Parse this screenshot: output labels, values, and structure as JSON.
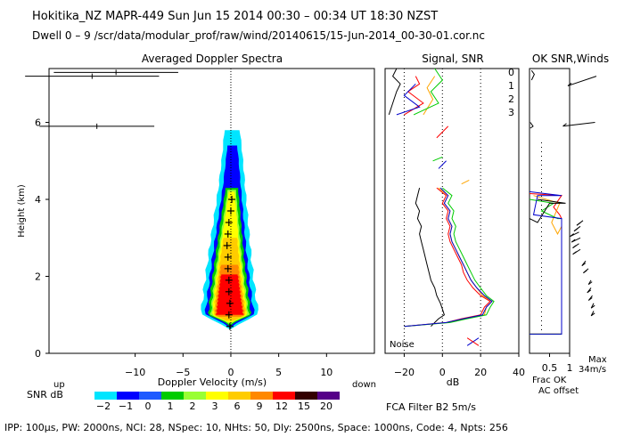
{
  "header": {
    "line1": "Hokitika_NZ   MAPR-449   Sun Jun 15 2014 00:30  –  00:34 UT 18:30 NZST",
    "line2": "Dwell   0  –   9    /scr/data/modular_prof/raw/wind/20140615/15-Jun-2014_00-30-01.cor.nc"
  },
  "footer": {
    "params": "IPP: 100μs,   PW: 2000ns,   NCI:  28,  NSpec: 10,  NHts: 50,   Dly: 2500ns,   Space: 1000ns,   Code: 4,   Npts: 256",
    "filter": "FCA Filter B2   5m/s"
  },
  "colors": {
    "c0": "#ff0000",
    "c1": "#ffa500",
    "c2": "#00cc00",
    "c3": "#0000cc",
    "snr_scale": [
      "#00e5ff",
      "#0000ff",
      "#1e5aff",
      "#00cc00",
      "#99ff33",
      "#ffff00",
      "#ffcc00",
      "#ff8800",
      "#ff0000",
      "#330000",
      "#550088"
    ]
  },
  "chart_data": [
    {
      "type": "heatmap",
      "title": "Averaged Doppler Spectra",
      "xlabel": "Doppler Velocity (m/s)",
      "ylabel": "Height (km)",
      "xlim": [
        -19,
        15
      ],
      "ylim": [
        0,
        7.4
      ],
      "x_ticks": [
        -10,
        -5,
        0,
        5,
        10
      ],
      "y_ticks": [
        0,
        2,
        4,
        6
      ],
      "side_labels": {
        "left": "up",
        "right": "down"
      },
      "colorbar": {
        "label": "SNR dB",
        "ticks": [
          "−2",
          "−1",
          "0",
          "1",
          "2",
          "3",
          "6",
          "9",
          "12",
          "15",
          "20"
        ]
      },
      "spectrum_peaks": [
        {
          "height": 0.7,
          "velocity": -0.1
        },
        {
          "height": 1.0,
          "velocity": -0.2
        },
        {
          "height": 1.3,
          "velocity": -0.1
        },
        {
          "height": 1.6,
          "velocity": -0.2
        },
        {
          "height": 1.9,
          "velocity": -0.2
        },
        {
          "height": 2.2,
          "velocity": -0.3
        },
        {
          "height": 2.5,
          "velocity": -0.3
        },
        {
          "height": 2.8,
          "velocity": -0.4
        },
        {
          "height": 3.1,
          "velocity": -0.3
        },
        {
          "height": 3.4,
          "velocity": -0.2
        },
        {
          "height": 3.7,
          "velocity": 0.0
        },
        {
          "height": 4.0,
          "velocity": 0.1
        }
      ],
      "upper_error_bars": [
        {
          "height": 7.3,
          "center": -12,
          "half_width": 6.5
        },
        {
          "height": 7.2,
          "center": -14.5,
          "half_width": 7
        },
        {
          "height": 5.9,
          "center": -14,
          "half_width": 6
        }
      ]
    },
    {
      "type": "line",
      "title": "Signal, SNR",
      "xlabel": "dB",
      "xlim": [
        -30,
        40
      ],
      "ylim": [
        0,
        7.4
      ],
      "x_ticks": [
        -20,
        0,
        20,
        40
      ],
      "annotation": "Noise",
      "legend": [
        "0",
        "1",
        "2",
        "3"
      ],
      "series": [
        {
          "name": "signal",
          "points": [
            [
              -6,
              0.7
            ],
            [
              -4,
              0.8
            ],
            [
              -2,
              0.9
            ],
            [
              1,
              1.0
            ],
            [
              0,
              1.15
            ],
            [
              -1,
              1.3
            ],
            [
              -3,
              1.5
            ],
            [
              -4,
              1.7
            ],
            [
              -6,
              1.9
            ],
            [
              -7,
              2.1
            ],
            [
              -8,
              2.3
            ],
            [
              -9,
              2.5
            ],
            [
              -10,
              2.7
            ],
            [
              -11,
              2.9
            ],
            [
              -12,
              3.1
            ],
            [
              -11,
              3.3
            ],
            [
              -13,
              3.5
            ],
            [
              -12,
              3.7
            ],
            [
              -14,
              3.9
            ],
            [
              -13,
              4.1
            ],
            [
              -12,
              4.3
            ]
          ]
        },
        {
          "name": "0",
          "points": [
            [
              -20,
              0.7
            ],
            [
              2,
              0.8
            ],
            [
              10,
              0.9
            ],
            [
              20,
              1.0
            ],
            [
              22,
              1.2
            ],
            [
              25,
              1.35
            ],
            [
              20,
              1.5
            ],
            [
              16,
              1.7
            ],
            [
              13,
              1.9
            ],
            [
              11,
              2.1
            ],
            [
              10,
              2.3
            ],
            [
              8,
              2.5
            ],
            [
              6,
              2.7
            ],
            [
              4,
              2.9
            ],
            [
              3,
              3.1
            ],
            [
              4,
              3.3
            ],
            [
              2,
              3.5
            ],
            [
              3,
              3.7
            ],
            [
              0,
              3.9
            ],
            [
              2,
              4.1
            ],
            [
              -3,
              4.3
            ]
          ]
        },
        {
          "name": "1",
          "points": [
            [
              -20,
              0.7
            ],
            [
              3,
              0.8
            ],
            [
              12,
              0.9
            ],
            [
              22,
              1.0
            ],
            [
              23,
              1.2
            ],
            [
              26,
              1.35
            ],
            [
              21,
              1.5
            ],
            [
              18,
              1.7
            ],
            [
              15,
              1.9
            ],
            [
              13,
              2.1
            ],
            [
              11,
              2.3
            ],
            [
              9,
              2.5
            ],
            [
              7,
              2.7
            ],
            [
              5,
              2.9
            ],
            [
              4,
              3.1
            ],
            [
              5,
              3.3
            ],
            [
              3,
              3.5
            ],
            [
              4,
              3.7
            ],
            [
              1,
              3.9
            ],
            [
              3,
              4.1
            ],
            [
              -2,
              4.3
            ]
          ]
        },
        {
          "name": "2",
          "points": [
            [
              -20,
              0.7
            ],
            [
              4,
              0.8
            ],
            [
              13,
              0.9
            ],
            [
              23,
              1.0
            ],
            [
              25,
              1.2
            ],
            [
              27,
              1.35
            ],
            [
              23,
              1.5
            ],
            [
              20,
              1.7
            ],
            [
              17,
              1.9
            ],
            [
              15,
              2.1
            ],
            [
              13,
              2.3
            ],
            [
              11,
              2.5
            ],
            [
              9,
              2.7
            ],
            [
              7,
              2.9
            ],
            [
              6,
              3.1
            ],
            [
              7,
              3.3
            ],
            [
              5,
              3.5
            ],
            [
              6,
              3.7
            ],
            [
              3,
              3.9
            ],
            [
              5,
              4.1
            ],
            [
              0,
              4.3
            ]
          ]
        },
        {
          "name": "3",
          "points": [
            [
              -20,
              0.7
            ],
            [
              2,
              0.8
            ],
            [
              11,
              0.9
            ],
            [
              21,
              1.0
            ],
            [
              23,
              1.2
            ],
            [
              26,
              1.35
            ],
            [
              22,
              1.5
            ],
            [
              18,
              1.7
            ],
            [
              15,
              1.9
            ],
            [
              13,
              2.1
            ],
            [
              11,
              2.3
            ],
            [
              9,
              2.5
            ],
            [
              7,
              2.7
            ],
            [
              5,
              2.9
            ],
            [
              4,
              3.1
            ],
            [
              5,
              3.3
            ],
            [
              3,
              3.5
            ],
            [
              4,
              3.7
            ],
            [
              1,
              3.9
            ],
            [
              3,
              4.1
            ],
            [
              -1,
              4.3
            ]
          ]
        }
      ],
      "upper_traces": [
        {
          "name": "signal",
          "points": [
            [
              -28,
              6.2
            ],
            [
              -26,
              6.5
            ],
            [
              -24,
              6.8
            ],
            [
              -22,
              7.0
            ],
            [
              -26,
              7.2
            ],
            [
              -24,
              7.4
            ]
          ]
        },
        {
          "name": "0",
          "points": [
            [
              -20,
              6.2
            ],
            [
              -10,
              6.5
            ],
            [
              -18,
              6.8
            ],
            [
              -12,
              7.0
            ],
            [
              -14,
              7.2
            ]
          ]
        },
        {
          "name": "1",
          "points": [
            [
              -10,
              6.2
            ],
            [
              -5,
              6.6
            ],
            [
              -8,
              6.9
            ],
            [
              -4,
              7.2
            ]
          ]
        },
        {
          "name": "2",
          "points": [
            [
              -15,
              6.2
            ],
            [
              -2,
              6.5
            ],
            [
              -6,
              6.8
            ],
            [
              0,
              7.1
            ],
            [
              -4,
              7.4
            ]
          ]
        },
        {
          "name": "3",
          "points": [
            [
              -24,
              6.2
            ],
            [
              -12,
              6.4
            ],
            [
              -20,
              6.7
            ],
            [
              -14,
              7.0
            ]
          ]
        }
      ]
    },
    {
      "type": "line",
      "title": "OK SNR,Winds",
      "xlim": [
        0,
        1
      ],
      "ylim": [
        0,
        7.4
      ],
      "x_ticks": [
        "0.5",
        "1"
      ],
      "xlabel": "Frac OK",
      "legend": [
        "Frac OK",
        "AC offset"
      ],
      "max_label": "Max",
      "max_value": "34m/s",
      "series": [
        {
          "name": "0",
          "points": [
            [
              0,
              0.5
            ],
            [
              0.8,
              0.5
            ],
            [
              0.8,
              3.5
            ],
            [
              0.75,
              3.6
            ],
            [
              0.6,
              3.8
            ],
            [
              0.8,
              4.1
            ],
            [
              0,
              4.15
            ]
          ]
        },
        {
          "name": "1",
          "points": [
            [
              0,
              0.5
            ],
            [
              0.8,
              0.5
            ],
            [
              0.8,
              3.3
            ],
            [
              0.7,
              3.1
            ],
            [
              0.55,
              3.4
            ],
            [
              0.75,
              3.9
            ],
            [
              0.1,
              4.1
            ]
          ]
        },
        {
          "name": "2",
          "points": [
            [
              0,
              0.5
            ],
            [
              0.8,
              0.5
            ],
            [
              0.8,
              3.5
            ],
            [
              0.7,
              3.5
            ],
            [
              0.3,
              3.7
            ],
            [
              0.6,
              3.9
            ],
            [
              0,
              4.0
            ]
          ]
        },
        {
          "name": "3",
          "points": [
            [
              0,
              0.5
            ],
            [
              0.8,
              0.5
            ],
            [
              0.8,
              3.5
            ],
            [
              0.1,
              3.6
            ],
            [
              0.2,
              4.1
            ],
            [
              0.8,
              4.1
            ],
            [
              0,
              4.2
            ]
          ]
        }
      ]
    }
  ]
}
